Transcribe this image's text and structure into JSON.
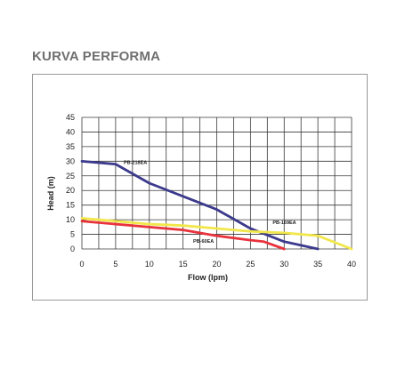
{
  "header": {
    "title": "KURVA PERFORMA"
  },
  "chart_data": {
    "type": "line",
    "title": "",
    "xlabel": "Flow (lpm)",
    "ylabel": "Head (m)",
    "xlim": [
      0,
      40
    ],
    "ylim": [
      0,
      45
    ],
    "xticks": [
      0,
      5,
      10,
      15,
      20,
      25,
      30,
      35,
      40
    ],
    "yticks": [
      0,
      5,
      10,
      15,
      20,
      25,
      30,
      35,
      40,
      45
    ],
    "grid": true,
    "series": [
      {
        "name": "PB-218EA",
        "color": "#3b3a8c",
        "x": [
          0,
          5,
          10,
          15,
          20,
          25,
          30,
          35
        ],
        "y": [
          30,
          29,
          22.5,
          18,
          13.5,
          7,
          2.5,
          0
        ]
      },
      {
        "name": "PB-169EA",
        "color": "#f2e74a",
        "x": [
          0,
          5,
          10,
          15,
          20,
          25,
          30,
          35,
          40
        ],
        "y": [
          10.5,
          9.5,
          8.5,
          8,
          7,
          6,
          5.5,
          4.5,
          0
        ]
      },
      {
        "name": "PB-60EA",
        "color": "#e8333d",
        "x": [
          0,
          5,
          10,
          15,
          20,
          25,
          27,
          30
        ],
        "y": [
          9.5,
          8.5,
          7.5,
          6.5,
          4.5,
          3,
          2.5,
          0
        ]
      }
    ],
    "annotations": [
      {
        "text": "PB-218EA",
        "series": 0,
        "x": 6.2,
        "y": 29
      },
      {
        "text": "PB-169EA",
        "series": 1,
        "x": 28.3,
        "y": 8.5
      },
      {
        "text": "PB-60EA",
        "series": 2,
        "x": 16.5,
        "y": 2.2
      }
    ]
  }
}
